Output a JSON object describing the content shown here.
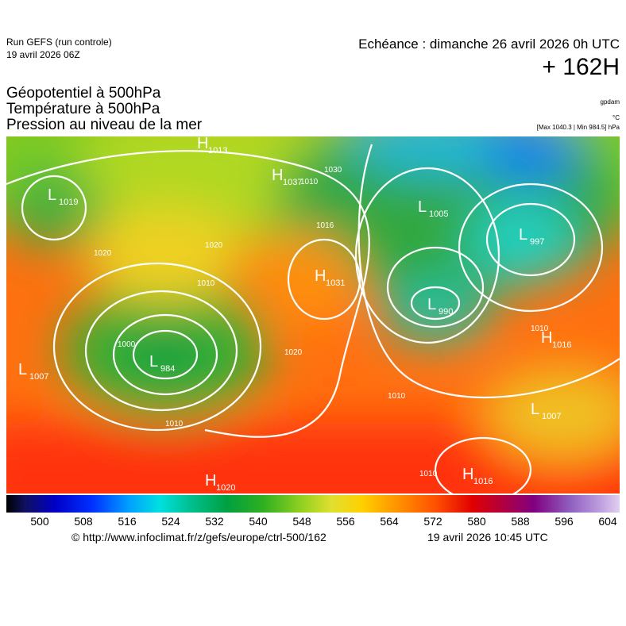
{
  "header": {
    "run": "Run GEFS (run controle)",
    "run_date": "19 avril 2026 06Z",
    "echeance": "Echéance : dimanche 26 avril 2026 0h UTC",
    "lead": "+ 162H"
  },
  "titles": [
    "Géopotentiel à 500hPa",
    "Température à 500hPa",
    "Pression au niveau de la mer"
  ],
  "units": {
    "geopotential": "gpdam",
    "temperature": "°C",
    "pressure": "[Max 1040.3 | Min 984.5] hPa"
  },
  "map": {
    "centers": [
      {
        "letter": "L",
        "value": 1019
      },
      {
        "letter": "H",
        "value": 1013
      },
      {
        "letter": "H",
        "value": 1037
      },
      {
        "letter": "L",
        "value": 1005
      },
      {
        "letter": "L",
        "value": 997
      },
      {
        "letter": "H",
        "value": 1031
      },
      {
        "letter": "L",
        "value": 984
      },
      {
        "letter": "L",
        "value": 1007
      },
      {
        "letter": "L",
        "value": 990
      },
      {
        "letter": "H",
        "value": 1016
      },
      {
        "letter": "H",
        "value": 1020
      },
      {
        "letter": "H",
        "value": 1016
      },
      {
        "letter": "L",
        "value": 1007
      }
    ],
    "isobar_labels": [
      1016,
      1020,
      1010,
      1000,
      1020,
      1010,
      1010,
      1010,
      1010,
      1020,
      1010,
      1030
    ]
  },
  "colorbar": {
    "ticks": [
      500,
      508,
      516,
      524,
      532,
      540,
      548,
      556,
      564,
      572,
      580,
      588,
      596,
      604
    ]
  },
  "footer": {
    "url": "© http://www.infoclimat.fr/z/gefs/europe/ctrl-500/162",
    "timestamp": "19 avril 2026 10:45 UTC"
  }
}
